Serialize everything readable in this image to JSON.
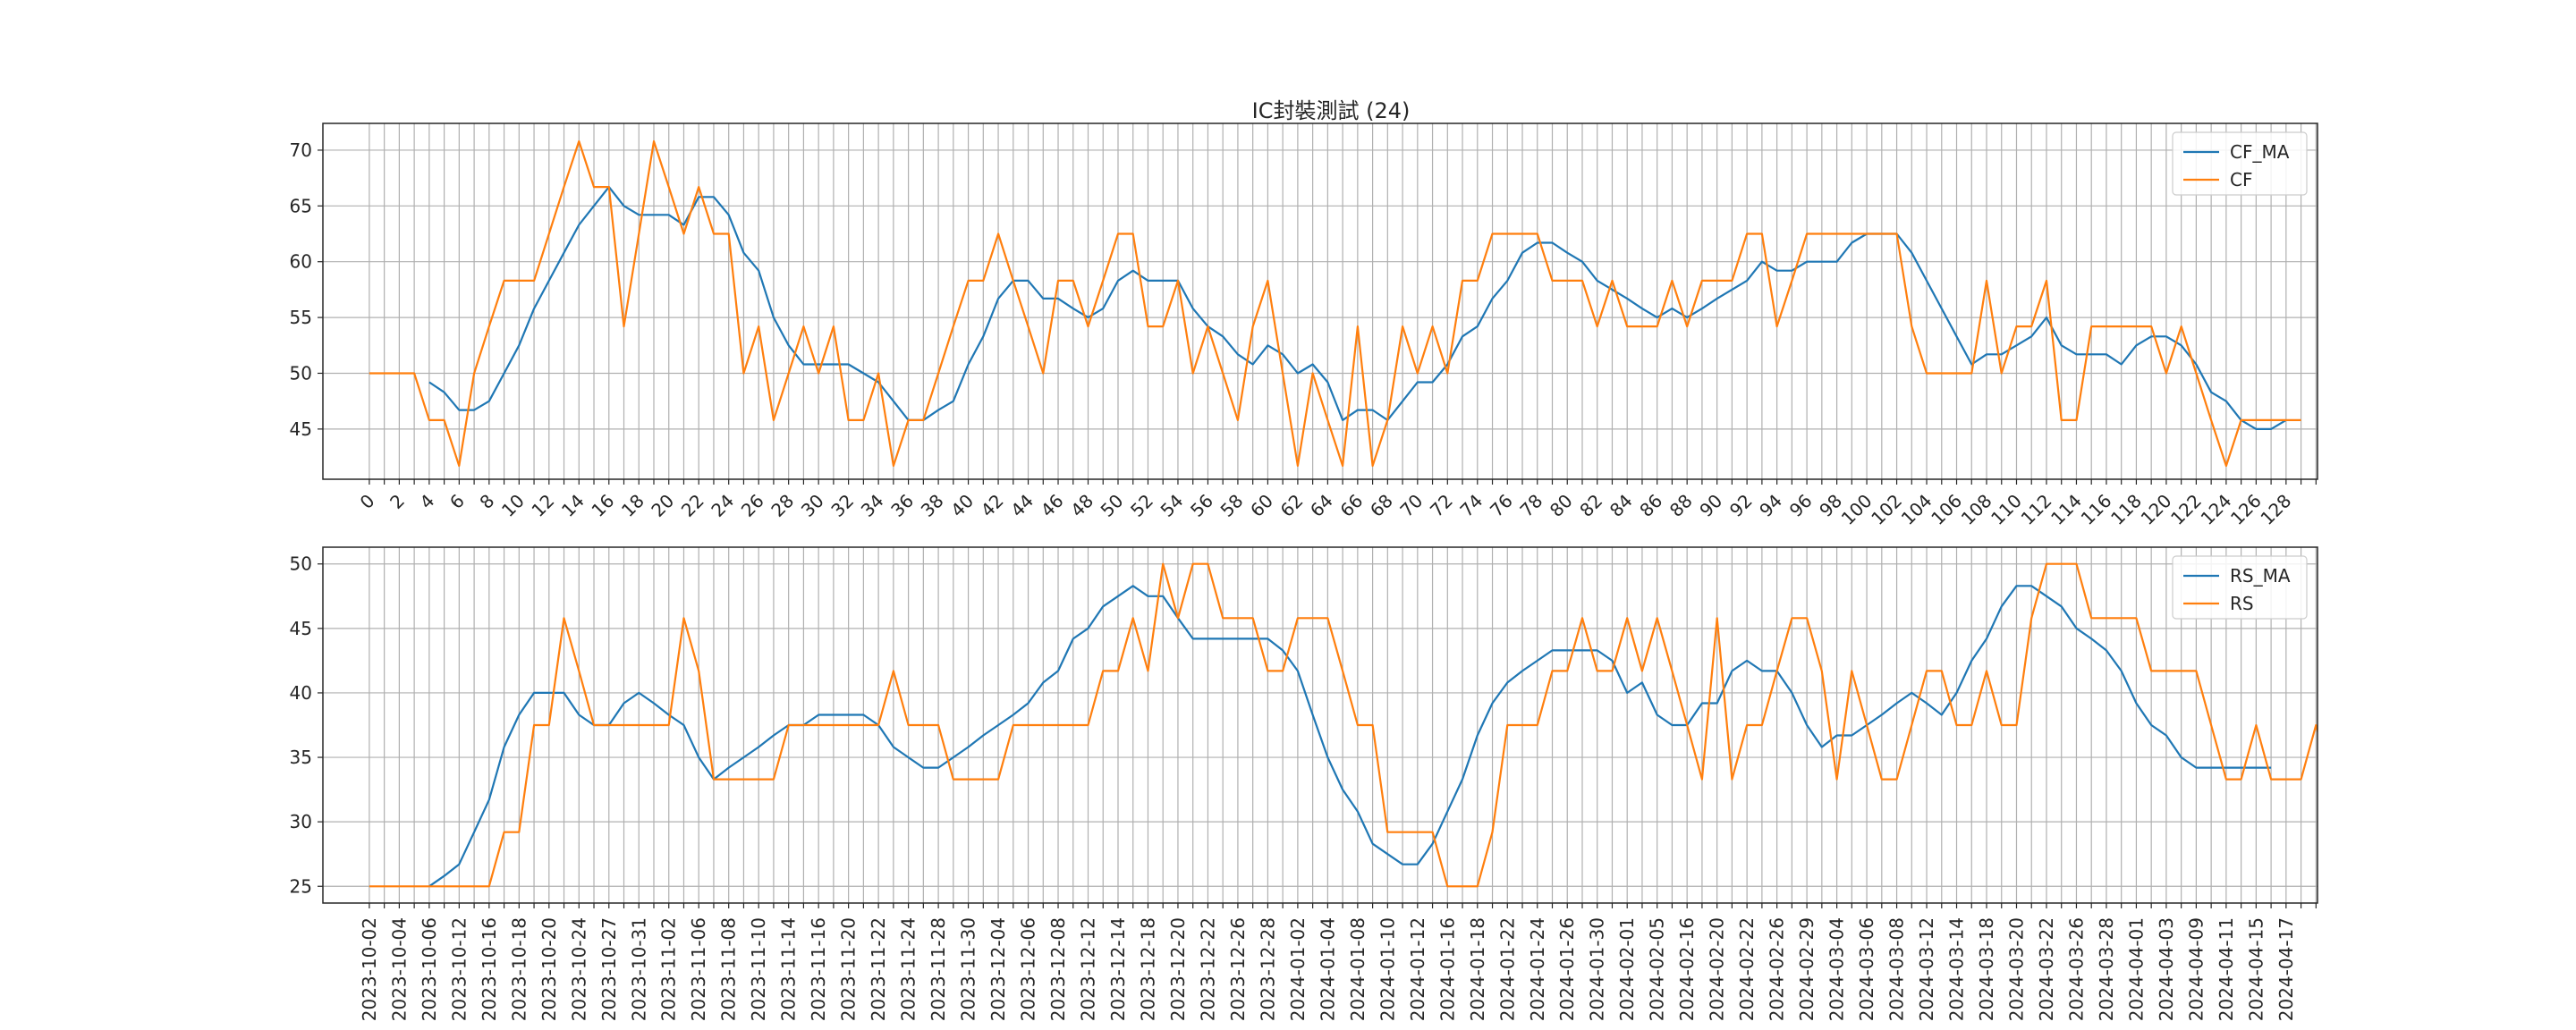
{
  "figure": {
    "title": "IC封裝測試 (24)"
  },
  "colors": {
    "ma": "#1f77b4",
    "raw": "#ff7f0e",
    "grid": "#b0b0b0",
    "axis": "#262626"
  },
  "chart_data": [
    {
      "type": "line",
      "title": "IC封裝測試 (24)",
      "xlabel": "",
      "ylabel": "",
      "xlim": [
        -3.1,
        130.1
      ],
      "ylim": [
        40.5,
        72.4
      ],
      "y_ticks": [
        45,
        50,
        55,
        60,
        65,
        70
      ],
      "x_tick_step": 2,
      "x_tick_labels": [
        "0",
        "2",
        "4",
        "6",
        "8",
        "10",
        "12",
        "14",
        "16",
        "18",
        "20",
        "22",
        "24",
        "26",
        "28",
        "30",
        "32",
        "34",
        "36",
        "38",
        "40",
        "42",
        "44",
        "46",
        "48",
        "50",
        "52",
        "54",
        "56",
        "58",
        "60",
        "62",
        "64",
        "66",
        "68",
        "70",
        "72",
        "74",
        "76",
        "78",
        "80",
        "82",
        "84",
        "86",
        "88",
        "90",
        "92",
        "94",
        "96",
        "98",
        "100",
        "102",
        "104",
        "106",
        "108",
        "110",
        "112",
        "114",
        "116",
        "118",
        "120",
        "122",
        "124",
        "126",
        "128"
      ],
      "grid": true,
      "legend": "top-right",
      "series": [
        {
          "name": "CF_MA",
          "color": "#1f77b4",
          "start_index": 4,
          "values": [
            49.2,
            48.3,
            46.7,
            46.7,
            47.5,
            50.0,
            52.5,
            55.8,
            58.3,
            60.8,
            63.3,
            65.0,
            66.7,
            65.0,
            64.2,
            64.2,
            64.2,
            63.3,
            65.8,
            65.8,
            64.2,
            60.8,
            59.2,
            55.0,
            52.5,
            50.8,
            50.8,
            50.8,
            50.8,
            50.0,
            49.2,
            47.5,
            45.8,
            45.8,
            46.7,
            47.5,
            50.8,
            53.3,
            56.7,
            58.3,
            58.3,
            56.7,
            56.7,
            55.8,
            55.0,
            55.8,
            58.3,
            59.2,
            58.3,
            58.3,
            58.3,
            55.8,
            54.2,
            53.3,
            51.7,
            50.8,
            52.5,
            51.7,
            50.0,
            50.8,
            49.2,
            45.8,
            46.7,
            46.7,
            45.8,
            47.5,
            49.2,
            49.2,
            50.8,
            53.3,
            54.2,
            56.7,
            58.3,
            60.8,
            61.7,
            61.7,
            60.8,
            60.0,
            58.3,
            57.5,
            56.7,
            55.8,
            55.0,
            55.8,
            55.0,
            55.8,
            56.7,
            57.5,
            58.3,
            60.0,
            59.2,
            59.2,
            60.0,
            60.0,
            60.0,
            61.7,
            62.5,
            62.5,
            62.5,
            60.8,
            58.3,
            55.8,
            53.3,
            50.8,
            51.7,
            51.7,
            52.5,
            53.3,
            55.0,
            52.5,
            51.7,
            51.7,
            51.7,
            50.8,
            52.5,
            53.3,
            53.3,
            52.5,
            50.8,
            48.3,
            47.5,
            45.8,
            45.0,
            45.0,
            45.8
          ]
        },
        {
          "name": "CF",
          "color": "#ff7f0e",
          "start_index": 0,
          "values": [
            50.0,
            50.0,
            50.0,
            50.0,
            45.8,
            45.8,
            41.7,
            50.0,
            54.2,
            58.3,
            58.3,
            58.3,
            62.5,
            66.7,
            70.8,
            66.7,
            66.7,
            54.2,
            62.5,
            70.8,
            66.7,
            62.5,
            66.7,
            62.5,
            62.5,
            50.0,
            54.2,
            45.8,
            50.0,
            54.2,
            50.0,
            54.2,
            45.8,
            45.8,
            50.0,
            41.7,
            45.8,
            45.8,
            50.0,
            54.2,
            58.3,
            58.3,
            62.5,
            58.3,
            54.2,
            50.0,
            58.3,
            58.3,
            54.2,
            58.3,
            62.5,
            62.5,
            54.2,
            54.2,
            58.3,
            50.0,
            54.2,
            50.0,
            45.8,
            54.2,
            58.3,
            50.0,
            41.7,
            50.0,
            45.8,
            41.7,
            54.2,
            41.7,
            45.8,
            54.2,
            50.0,
            54.2,
            50.0,
            58.3,
            58.3,
            62.5,
            62.5,
            62.5,
            62.5,
            58.3,
            58.3,
            58.3,
            54.2,
            58.3,
            54.2,
            54.2,
            54.2,
            58.3,
            54.2,
            58.3,
            58.3,
            58.3,
            62.5,
            62.5,
            54.2,
            58.3,
            62.5,
            62.5,
            62.5,
            62.5,
            62.5,
            62.5,
            62.5,
            54.2,
            50.0,
            50.0,
            50.0,
            50.0,
            58.3,
            50.0,
            54.2,
            54.2,
            58.3,
            45.8,
            45.8,
            54.2,
            54.2,
            54.2,
            54.2,
            54.2,
            50.0,
            54.2,
            50.0,
            45.8,
            41.7,
            45.8,
            45.8,
            45.8,
            45.8,
            45.8
          ]
        }
      ]
    },
    {
      "type": "line",
      "title": "",
      "xlabel": "",
      "ylabel": "",
      "xlim": [
        -3.1,
        130.1
      ],
      "ylim": [
        23.7,
        51.3
      ],
      "y_ticks": [
        25,
        30,
        35,
        40,
        45,
        50
      ],
      "x_tick_step": 2,
      "x_tick_labels": [
        "2023-10-02",
        "2023-10-04",
        "2023-10-06",
        "2023-10-12",
        "2023-10-16",
        "2023-10-18",
        "2023-10-20",
        "2023-10-24",
        "2023-10-27",
        "2023-10-31",
        "2023-11-02",
        "2023-11-06",
        "2023-11-08",
        "2023-11-10",
        "2023-11-14",
        "2023-11-16",
        "2023-11-20",
        "2023-11-22",
        "2023-11-24",
        "2023-11-28",
        "2023-11-30",
        "2023-12-04",
        "2023-12-06",
        "2023-12-08",
        "2023-12-12",
        "2023-12-14",
        "2023-12-18",
        "2023-12-20",
        "2023-12-22",
        "2023-12-26",
        "2023-12-28",
        "2024-01-02",
        "2024-01-04",
        "2024-01-08",
        "2024-01-10",
        "2024-01-12",
        "2024-01-16",
        "2024-01-18",
        "2024-01-22",
        "2024-01-24",
        "2024-01-26",
        "2024-01-30",
        "2024-02-01",
        "2024-02-05",
        "2024-02-16",
        "2024-02-20",
        "2024-02-22",
        "2024-02-26",
        "2024-02-29",
        "2024-03-04",
        "2024-03-06",
        "2024-03-08",
        "2024-03-12",
        "2024-03-14",
        "2024-03-18",
        "2024-03-20",
        "2024-03-22",
        "2024-03-26",
        "2024-03-28",
        "2024-04-01",
        "2024-04-03",
        "2024-04-09",
        "2024-04-11",
        "2024-04-15",
        "2024-04-17"
      ],
      "grid": true,
      "legend": "top-right",
      "series": [
        {
          "name": "RS_MA",
          "color": "#1f77b4",
          "start_index": 4,
          "values": [
            25.0,
            25.8,
            26.7,
            29.2,
            31.7,
            35.8,
            38.3,
            40.0,
            40.0,
            40.0,
            38.3,
            37.5,
            37.5,
            39.2,
            40.0,
            39.2,
            38.3,
            37.5,
            35.0,
            33.3,
            34.2,
            35.0,
            35.8,
            36.7,
            37.5,
            37.5,
            38.3,
            38.3,
            38.3,
            38.3,
            37.5,
            35.8,
            35.0,
            34.2,
            34.2,
            35.0,
            35.8,
            36.7,
            37.5,
            38.3,
            39.2,
            40.8,
            41.7,
            44.2,
            45.0,
            46.7,
            47.5,
            48.3,
            47.5,
            47.5,
            45.8,
            44.2,
            44.2,
            44.2,
            44.2,
            44.2,
            44.2,
            43.3,
            41.7,
            38.3,
            35.0,
            32.5,
            30.8,
            28.3,
            27.5,
            26.7,
            26.7,
            28.3,
            30.8,
            33.3,
            36.7,
            39.2,
            40.8,
            41.7,
            42.5,
            43.3,
            43.3,
            43.3,
            43.3,
            42.5,
            40.0,
            40.8,
            38.3,
            37.5,
            37.5,
            39.2,
            39.2,
            41.7,
            42.5,
            41.7,
            41.7,
            40.0,
            37.5,
            35.8,
            36.7,
            36.7,
            37.5,
            38.3,
            39.2,
            40.0,
            39.2,
            38.3,
            40.0,
            42.5,
            44.2,
            46.7,
            48.3,
            48.3,
            47.5,
            46.7,
            45.0,
            44.2,
            43.3,
            41.7,
            39.2,
            37.5,
            36.7,
            35.0,
            34.2,
            34.2,
            34.2,
            34.2,
            34.2,
            34.2
          ]
        },
        {
          "name": "RS",
          "color": "#ff7f0e",
          "start_index": 0,
          "values": [
            25.0,
            25.0,
            25.0,
            25.0,
            25.0,
            25.0,
            25.0,
            25.0,
            25.0,
            29.2,
            29.2,
            37.5,
            37.5,
            45.8,
            41.7,
            37.5,
            37.5,
            37.5,
            37.5,
            37.5,
            37.5,
            45.8,
            41.7,
            33.3,
            33.3,
            33.3,
            33.3,
            33.3,
            37.5,
            37.5,
            37.5,
            37.5,
            37.5,
            37.5,
            37.5,
            41.7,
            37.5,
            37.5,
            37.5,
            33.3,
            33.3,
            33.3,
            33.3,
            37.5,
            37.5,
            37.5,
            37.5,
            37.5,
            37.5,
            41.7,
            41.7,
            45.8,
            41.7,
            50.0,
            45.8,
            50.0,
            50.0,
            45.8,
            45.8,
            45.8,
            41.7,
            41.7,
            45.8,
            45.8,
            45.8,
            41.7,
            37.5,
            37.5,
            29.2,
            29.2,
            29.2,
            29.2,
            25.0,
            25.0,
            25.0,
            29.2,
            37.5,
            37.5,
            37.5,
            41.7,
            41.7,
            45.8,
            41.7,
            41.7,
            45.8,
            41.7,
            45.8,
            41.7,
            37.5,
            33.3,
            45.8,
            33.3,
            37.5,
            37.5,
            41.7,
            45.8,
            45.8,
            41.7,
            33.3,
            41.7,
            37.5,
            33.3,
            33.3,
            37.5,
            41.7,
            41.7,
            37.5,
            37.5,
            41.7,
            37.5,
            37.5,
            45.8,
            50.0,
            50.0,
            50.0,
            45.8,
            45.8,
            45.8,
            45.8,
            41.7,
            41.7,
            41.7,
            41.7,
            37.5,
            33.3,
            33.3,
            37.5,
            33.3,
            33.3,
            33.3,
            37.5,
            33.3
          ]
        }
      ]
    }
  ]
}
